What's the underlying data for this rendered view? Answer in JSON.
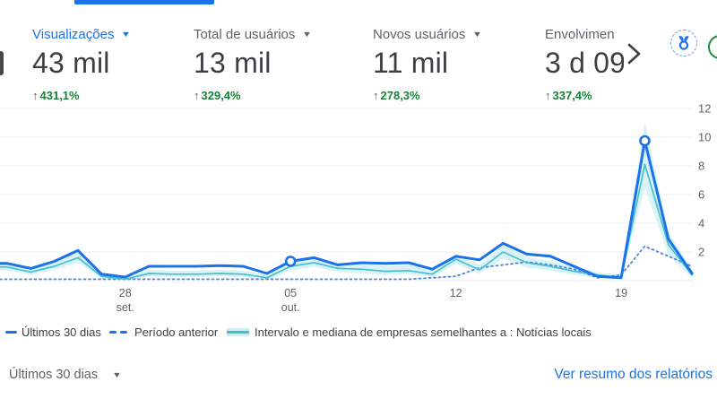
{
  "icons": {
    "up_arrow": "↑",
    "caret_down": "▼"
  },
  "header": {
    "cards": [
      {
        "label": "Visualizações",
        "value": "43 mil",
        "delta": "431,1%",
        "active": true,
        "has_dropdown": true
      },
      {
        "label": "Total de usuários",
        "value": "13 mil",
        "delta": "329,4%",
        "active": false,
        "has_dropdown": true
      },
      {
        "label": "Novos usuários",
        "value": "11 mil",
        "delta": "278,3%",
        "active": false,
        "has_dropdown": true
      },
      {
        "label": "Envolvimen",
        "value": "3 d 09",
        "delta": "337,4%",
        "active": false,
        "has_dropdown": false
      }
    ]
  },
  "chart_data": {
    "type": "line",
    "n_points": 30,
    "ylim": [
      0,
      12
    ],
    "y_ticks": [
      2,
      4,
      6,
      8,
      10,
      12
    ],
    "x_ticks": [
      {
        "index": 5,
        "line1": "28",
        "line2": "set."
      },
      {
        "index": 12,
        "line1": "05",
        "line2": "out."
      },
      {
        "index": 19,
        "line1": "12",
        "line2": ""
      },
      {
        "index": 26,
        "line1": "19",
        "line2": ""
      }
    ],
    "grid_color": "#eef0f2",
    "axis_label_color": "#5f6368",
    "series": [
      {
        "name": "Intervalo de empresas semelhantes a : Notícias locais",
        "style": "band",
        "color": "#cdeef3",
        "upper": [
          1.25,
          0.85,
          1.3,
          1.95,
          0.5,
          0.25,
          0.75,
          0.7,
          0.7,
          0.75,
          0.7,
          0.4,
          1.3,
          1.55,
          1.1,
          1.2,
          1.0,
          1.1,
          0.7,
          1.85,
          1.1,
          2.45,
          1.65,
          1.35,
          0.95,
          0.6,
          0.35,
          11.1,
          3.4,
          0.7
        ],
        "lower": [
          0.7,
          0.4,
          0.75,
          1.25,
          0.15,
          0.0,
          0.3,
          0.25,
          0.25,
          0.3,
          0.25,
          0.05,
          0.7,
          0.95,
          0.6,
          0.5,
          0.4,
          0.45,
          0.25,
          1.15,
          0.5,
          1.55,
          0.9,
          0.7,
          0.4,
          0.2,
          0.1,
          6.5,
          1.8,
          0.2
        ]
      },
      {
        "name": "Período anterior",
        "style": "dashed",
        "color": "#4f84d8",
        "stroke_width": 1.8,
        "values": [
          0.1,
          0.1,
          0.1,
          0.1,
          0.1,
          0.1,
          0.1,
          0.1,
          0.1,
          0.1,
          0.1,
          0.1,
          0.1,
          0.1,
          0.1,
          0.1,
          0.1,
          0.1,
          0.2,
          0.3,
          0.9,
          1.1,
          1.3,
          1.1,
          0.8,
          0.2,
          0.4,
          2.4,
          1.7,
          1.0
        ]
      },
      {
        "name": "Mediana de empresas semelhantes a : Notícias locais",
        "style": "solid",
        "color": "#45c0ce",
        "stroke_width": 1.7,
        "values": [
          0.95,
          0.6,
          1.0,
          1.6,
          0.3,
          0.1,
          0.5,
          0.45,
          0.45,
          0.5,
          0.45,
          0.2,
          1.0,
          1.25,
          0.85,
          0.8,
          0.65,
          0.7,
          0.45,
          1.5,
          0.75,
          2.0,
          1.25,
          1.0,
          0.65,
          0.4,
          0.2,
          8.1,
          2.5,
          0.4
        ]
      },
      {
        "name": "Últimos 30 dias",
        "style": "solid",
        "color": "#1a73e8",
        "stroke_width": 3,
        "marker_indices": [
          12,
          27
        ],
        "values": [
          1.2,
          0.85,
          1.35,
          2.1,
          0.45,
          0.25,
          1.0,
          1.0,
          1.0,
          1.05,
          1.0,
          0.5,
          1.35,
          1.6,
          1.1,
          1.25,
          1.2,
          1.25,
          0.8,
          1.7,
          1.45,
          2.6,
          1.85,
          1.7,
          1.0,
          0.3,
          0.2,
          9.75,
          2.9,
          0.5
        ]
      }
    ]
  },
  "legend": {
    "items": [
      {
        "label": "Últimos 30 dias"
      },
      {
        "label": "Período anterior"
      },
      {
        "label": "Intervalo e mediana de empresas semelhantes a : Notícias locais"
      }
    ]
  },
  "footer": {
    "range_label": "Últimos 30 dias",
    "link_label": "Ver resumo dos relatórios"
  }
}
